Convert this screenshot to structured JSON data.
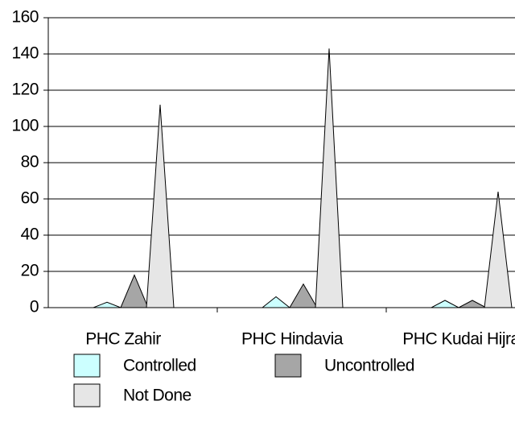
{
  "chart_data": {
    "type": "spike",
    "categories": [
      "PHC Zahir",
      "PHC Hindavia",
      "PHC Kudai Hijra"
    ],
    "series": [
      {
        "name": "Controlled",
        "color": "#ccffff",
        "values": [
          3,
          6,
          4
        ]
      },
      {
        "name": "Uncontrolled",
        "color": "#a6a6a6",
        "values": [
          18,
          13,
          4
        ]
      },
      {
        "name": "Not Done",
        "color": "#e6e6e6",
        "values": [
          112,
          143,
          64
        ]
      }
    ],
    "ylim": [
      0,
      160
    ],
    "yticks": [
      0,
      20,
      40,
      60,
      80,
      100,
      120,
      140,
      160
    ],
    "grid": true
  }
}
